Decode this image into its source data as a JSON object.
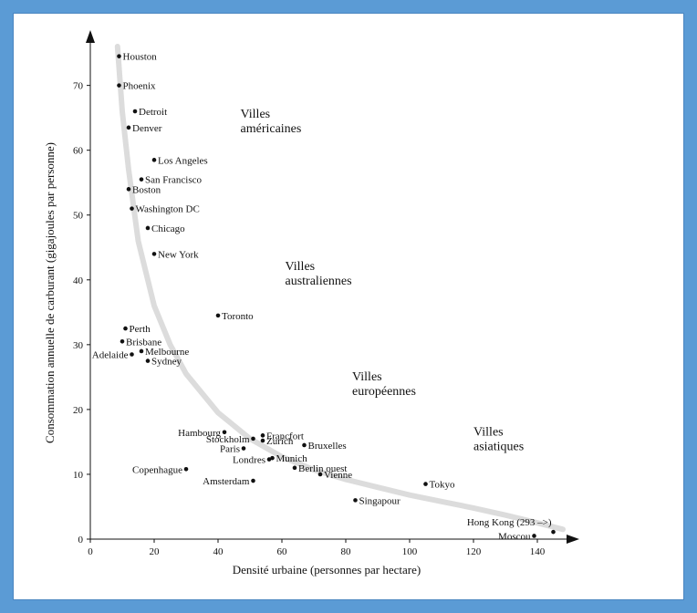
{
  "chart_data": {
    "type": "scatter",
    "xlabel": "Densité urbaine (personnes par hectare)",
    "ylabel": "Consommation annuelle de carburant (gigajoules par personne)",
    "xlim": [
      0,
      148
    ],
    "ylim": [
      0,
      76
    ],
    "x_ticks": [
      0,
      20,
      40,
      60,
      80,
      100,
      120,
      140
    ],
    "y_ticks": [
      0,
      10,
      20,
      30,
      40,
      50,
      60,
      70
    ],
    "grid": false,
    "points": [
      {
        "name": "Houston",
        "x": 9,
        "y": 74.5,
        "label_side": "right"
      },
      {
        "name": "Phoenix",
        "x": 9,
        "y": 70,
        "label_side": "right"
      },
      {
        "name": "Detroit",
        "x": 14,
        "y": 66,
        "label_side": "right"
      },
      {
        "name": "Denver",
        "x": 12,
        "y": 63.5,
        "label_side": "right"
      },
      {
        "name": "Los Angeles",
        "x": 20,
        "y": 58.5,
        "label_side": "right"
      },
      {
        "name": "San Francisco",
        "x": 16,
        "y": 55.5,
        "label_side": "right"
      },
      {
        "name": "Boston",
        "x": 12,
        "y": 54,
        "label_side": "right"
      },
      {
        "name": "Washington DC",
        "x": 13,
        "y": 51,
        "label_side": "right"
      },
      {
        "name": "Chicago",
        "x": 18,
        "y": 48,
        "label_side": "right"
      },
      {
        "name": "New York",
        "x": 20,
        "y": 44,
        "label_side": "right"
      },
      {
        "name": "Toronto",
        "x": 40,
        "y": 34.5,
        "label_side": "right"
      },
      {
        "name": "Perth",
        "x": 11,
        "y": 32.5,
        "label_side": "right"
      },
      {
        "name": "Brisbane",
        "x": 10,
        "y": 30.5,
        "label_side": "right"
      },
      {
        "name": "Melbourne",
        "x": 16,
        "y": 29,
        "label_side": "right"
      },
      {
        "name": "Adelaide",
        "x": 13,
        "y": 28.5,
        "label_side": "left"
      },
      {
        "name": "Sydney",
        "x": 18,
        "y": 27.5,
        "label_side": "right"
      },
      {
        "name": "Hambourg",
        "x": 42,
        "y": 16.5,
        "label_side": "left"
      },
      {
        "name": "Francfort",
        "x": 54,
        "y": 16,
        "label_side": "right"
      },
      {
        "name": "Stockholm",
        "x": 51,
        "y": 15.5,
        "label_side": "left"
      },
      {
        "name": "Zurich",
        "x": 54,
        "y": 15.2,
        "label_side": "right"
      },
      {
        "name": "Bruxelles",
        "x": 67,
        "y": 14.5,
        "label_side": "right"
      },
      {
        "name": "Paris",
        "x": 48,
        "y": 14,
        "label_side": "left"
      },
      {
        "name": "Munich",
        "x": 57,
        "y": 12.5,
        "label_side": "right"
      },
      {
        "name": "Londres",
        "x": 56,
        "y": 12.3,
        "label_side": "left"
      },
      {
        "name": "Berlin ouest",
        "x": 64,
        "y": 11,
        "label_side": "right"
      },
      {
        "name": "Copenhague",
        "x": 30,
        "y": 10.8,
        "label_side": "left"
      },
      {
        "name": "Vienne",
        "x": 72,
        "y": 10,
        "label_side": "right"
      },
      {
        "name": "Amsterdam",
        "x": 51,
        "y": 9,
        "label_side": "left"
      },
      {
        "name": "Tokyo",
        "x": 105,
        "y": 8.5,
        "label_side": "right"
      },
      {
        "name": "Singapour",
        "x": 83,
        "y": 6,
        "label_side": "right"
      },
      {
        "name": "Hong Kong (293 –>)",
        "x": 145,
        "y": 1.1,
        "label_side": "upper-left"
      },
      {
        "name": "Moscou",
        "x": 139,
        "y": 0.5,
        "label_side": "left"
      }
    ],
    "curve": [
      [
        8.5,
        76
      ],
      [
        10,
        66
      ],
      [
        12,
        57
      ],
      [
        15,
        46
      ],
      [
        20,
        36
      ],
      [
        25,
        30
      ],
      [
        30,
        25.5
      ],
      [
        40,
        19.5
      ],
      [
        50,
        15.5
      ],
      [
        60,
        12.7
      ],
      [
        70,
        10.7
      ],
      [
        80,
        9.2
      ],
      [
        90,
        8
      ],
      [
        100,
        6.8
      ],
      [
        110,
        5.8
      ],
      [
        120,
        4.8
      ],
      [
        130,
        3.7
      ],
      [
        140,
        2.5
      ],
      [
        148,
        1.5
      ]
    ],
    "annotations": [
      {
        "text": [
          "Villes",
          "américaines"
        ],
        "x": 47,
        "y": 65
      },
      {
        "text": [
          "Villes",
          "australiennes"
        ],
        "x": 61,
        "y": 41.5
      },
      {
        "text": [
          "Villes",
          "européennes"
        ],
        "x": 82,
        "y": 24.5
      },
      {
        "text": [
          "Villes",
          "asiatiques"
        ],
        "x": 120,
        "y": 16
      }
    ],
    "curve_color": "#dcdcdc",
    "point_color": "#111111"
  }
}
